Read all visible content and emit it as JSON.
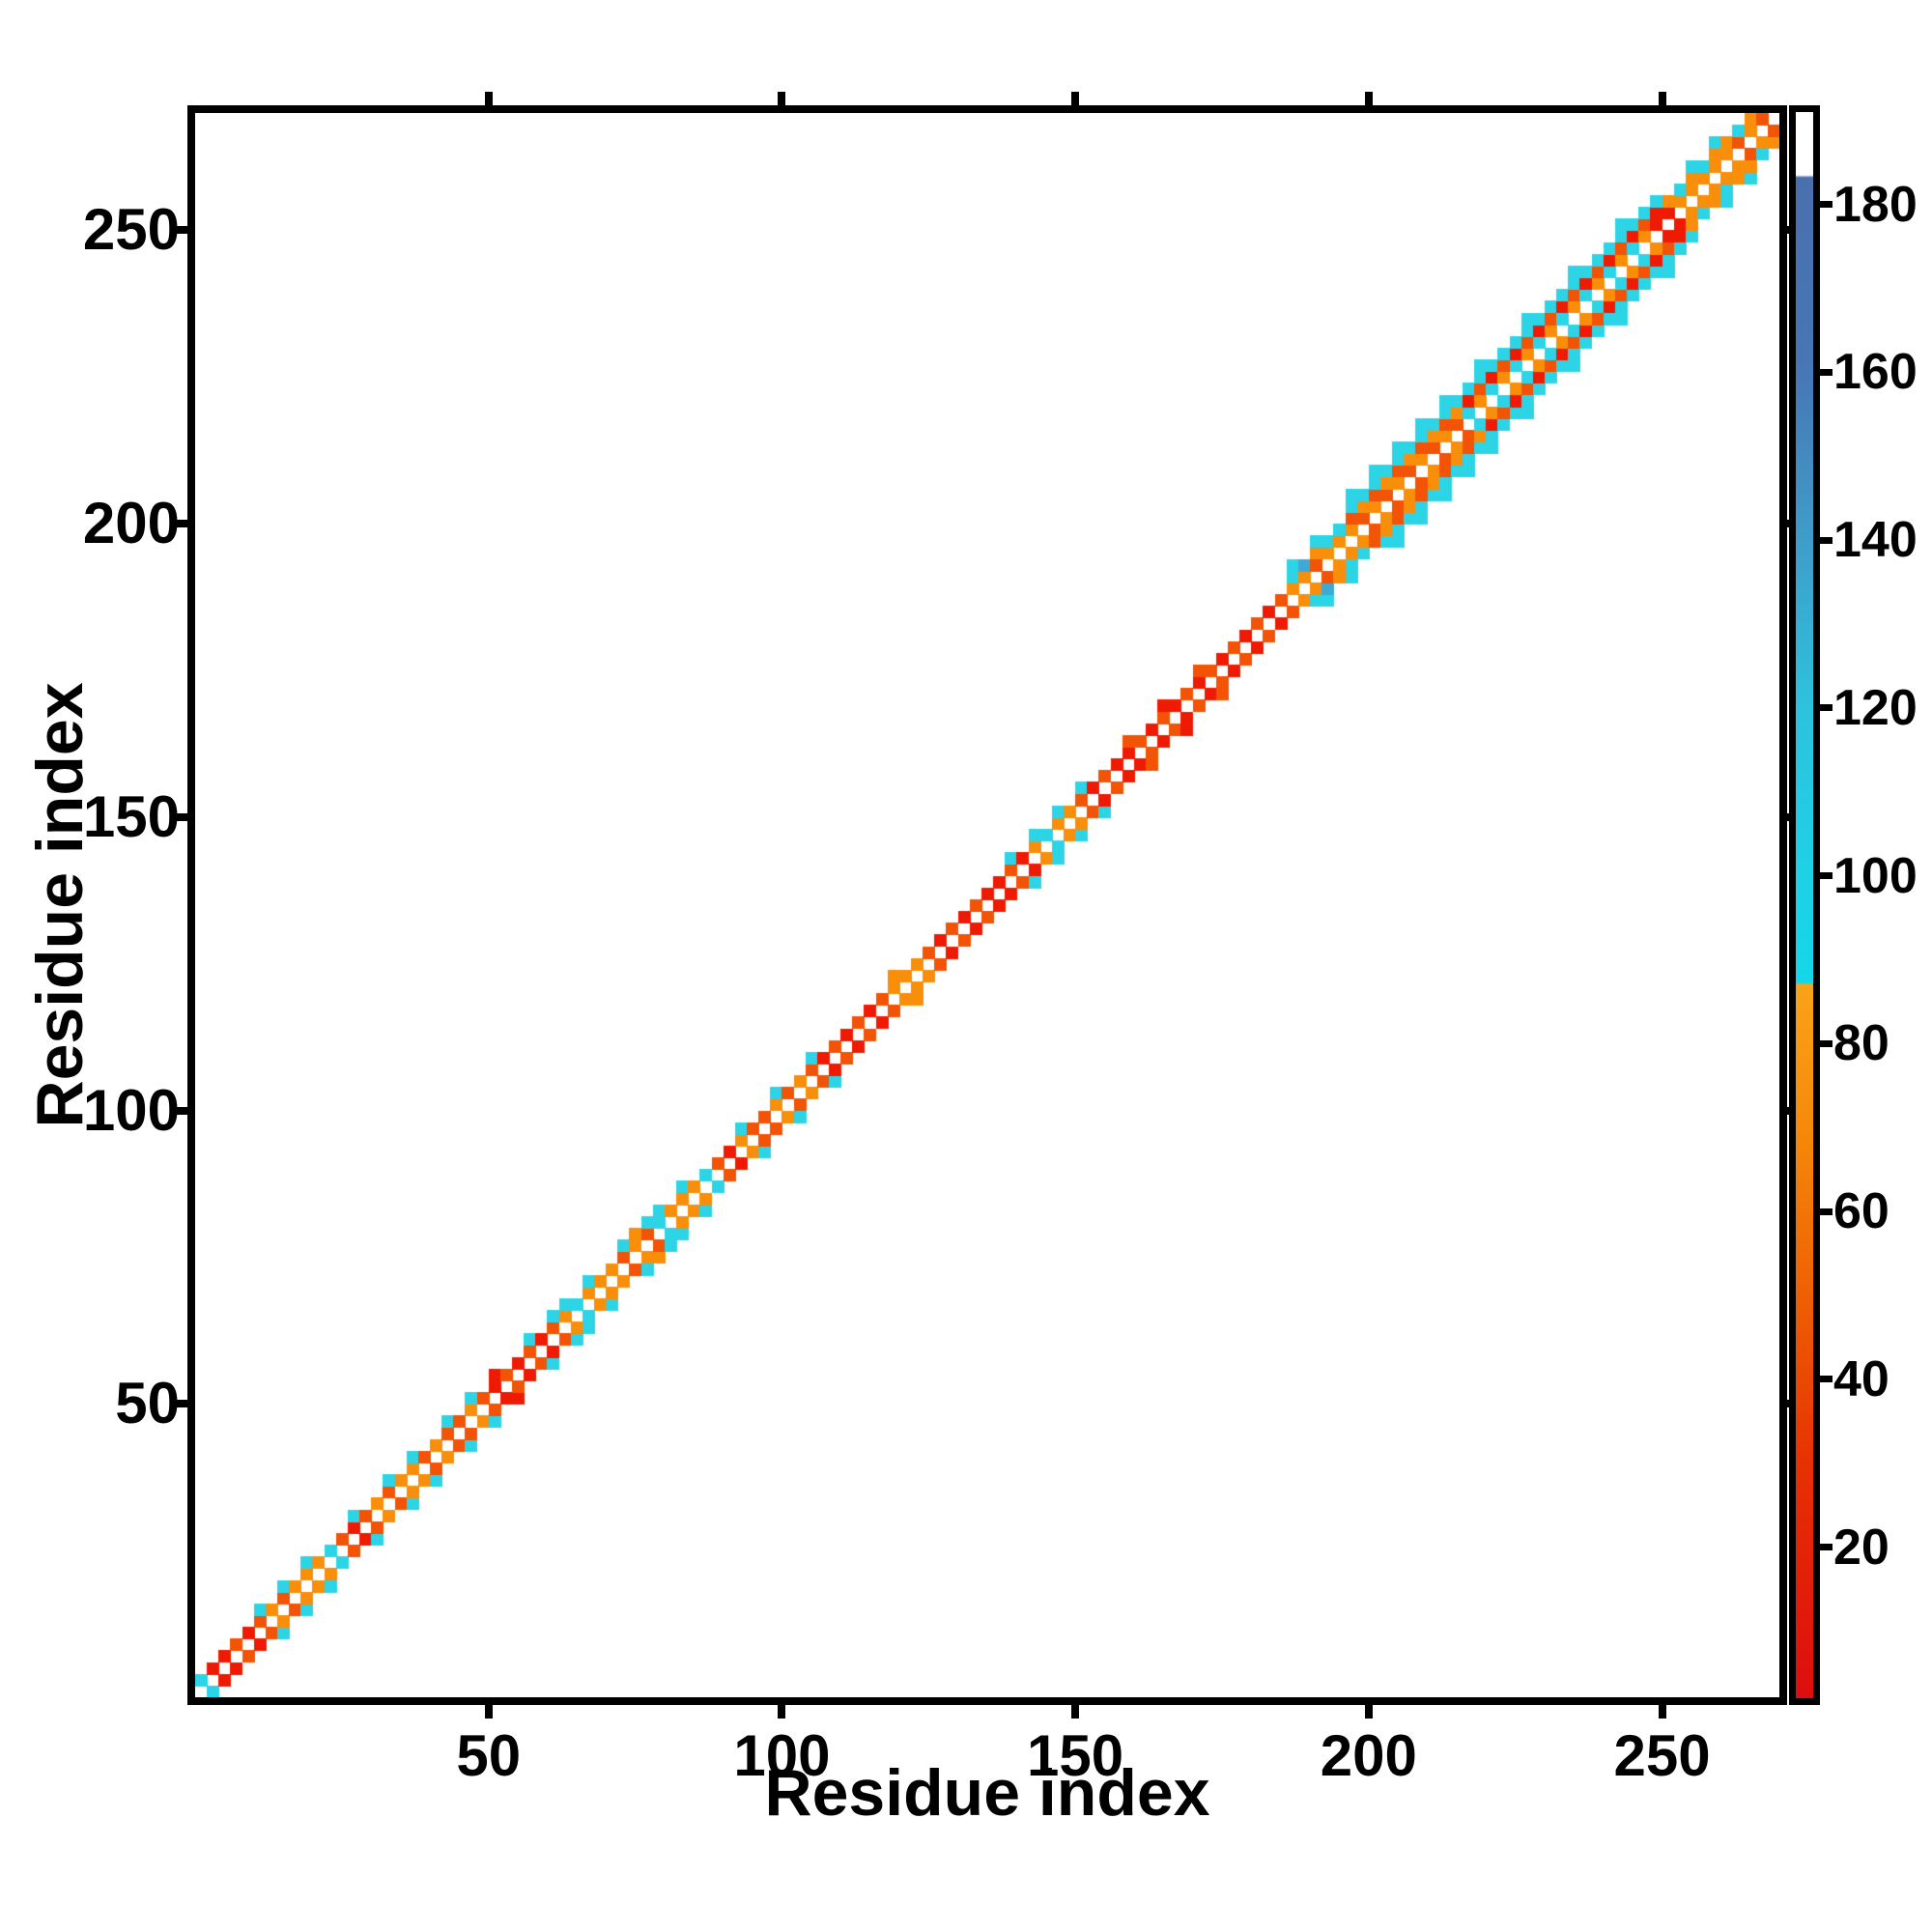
{
  "chart_data": {
    "type": "heatmap",
    "title": "",
    "xlabel": "Residue index",
    "ylabel": "Residue index",
    "x_axis": {
      "ticks": [
        50,
        100,
        150,
        200,
        250
      ],
      "range": [
        0,
        270
      ]
    },
    "y_axis": {
      "ticks": [
        50,
        100,
        150,
        200,
        250
      ],
      "range": [
        0,
        270
      ]
    },
    "n_residues": 270,
    "cell_size_residues": 2,
    "grid": false,
    "legend": "colorbar-right",
    "colorbar": {
      "ticks": [
        20,
        40,
        60,
        80,
        100,
        120,
        140,
        160,
        180
      ],
      "vmin": 2,
      "vmax": 191,
      "stops": [
        {
          "v": 191,
          "c": "#ffffff"
        },
        {
          "v": 183.5,
          "c": "#ffffff"
        },
        {
          "v": 183.2,
          "c": "#4a6fae"
        },
        {
          "v": 160,
          "c": "#4677b6"
        },
        {
          "v": 140,
          "c": "#3f9dc9"
        },
        {
          "v": 120,
          "c": "#2dc2dd"
        },
        {
          "v": 100,
          "c": "#1fd1e5"
        },
        {
          "v": 87.3,
          "c": "#14d7e9"
        },
        {
          "v": 87,
          "c": "#f9a319"
        },
        {
          "v": 70,
          "c": "#f58a0b"
        },
        {
          "v": 50,
          "c": "#ee6004"
        },
        {
          "v": 30,
          "c": "#e73103"
        },
        {
          "v": 2,
          "c": "#dc0e0e"
        }
      ]
    },
    "palette": {
      "red": "#ee1b02",
      "redOrange": "#f35304",
      "orange": "#f98e0a",
      "cyan": "#2dd4e6",
      "blueCyan": "#3fa9d6"
    },
    "diagonal_color": "#ffffff",
    "background_value_color": "#ffffff",
    "segments": [
      {
        "r0": 0,
        "r1": 4,
        "o1": [
          "cyan",
          "red"
        ]
      },
      {
        "r0": 4,
        "r1": 10,
        "o1": [
          "red",
          "redOrange"
        ]
      },
      {
        "r0": 10,
        "r1": 16,
        "o1": [
          "redOrange",
          "orange"
        ],
        "o2": [
          "cyan",
          null
        ]
      },
      {
        "r0": 16,
        "r1": 22,
        "o1": [
          "orange",
          "orange"
        ],
        "o2": [
          null,
          "cyan"
        ]
      },
      {
        "r0": 22,
        "r1": 26,
        "o1": [
          "cyan",
          "redOrange"
        ]
      },
      {
        "r0": 26,
        "r1": 30,
        "o1": [
          "red",
          "redOrange"
        ],
        "o2": [
          "cyan",
          null
        ]
      },
      {
        "r0": 30,
        "r1": 36,
        "o1": [
          "orange",
          "redOrange"
        ],
        "o2": [
          null,
          "cyan"
        ]
      },
      {
        "r0": 36,
        "r1": 44,
        "o1": [
          "orange",
          "redOrange"
        ],
        "o2": [
          "cyan",
          null,
          null
        ]
      },
      {
        "r0": 44,
        "r1": 50,
        "o1": [
          "redOrange",
          "orange"
        ],
        "o2": [
          null,
          "cyan"
        ]
      },
      {
        "r0": 50,
        "r1": 56,
        "o1": [
          "red",
          "redOrange"
        ],
        "o2": [
          "red",
          null,
          null
        ]
      },
      {
        "r0": 56,
        "r1": 62,
        "o1": [
          "redOrange",
          "red"
        ],
        "o2": [
          "cyan",
          null
        ]
      },
      {
        "r0": 62,
        "r1": 70,
        "o1": [
          "orange",
          "cyan",
          "orange",
          "orange"
        ],
        "o2": [
          "cyan",
          null,
          "cyan",
          null
        ]
      },
      {
        "r0": 70,
        "r1": 78,
        "o1": [
          "orange",
          "redOrange"
        ],
        "o2": [
          null,
          "cyan",
          "orange",
          "cyan"
        ]
      },
      {
        "r0": 78,
        "r1": 88,
        "o1": [
          "cyan",
          "orange",
          "orange",
          "orange"
        ],
        "o2": [
          "cyan",
          null,
          "cyan",
          null,
          null
        ]
      },
      {
        "r0": 88,
        "r1": 98,
        "o1": [
          "redOrange",
          "red",
          "orange",
          "redOrange"
        ],
        "o2": [
          null,
          null,
          "cyan",
          null,
          null
        ]
      },
      {
        "r0": 98,
        "r1": 106,
        "o1": [
          "orange",
          "redOrange"
        ],
        "o2": [
          "cyan",
          null,
          null,
          "cyan"
        ]
      },
      {
        "r0": 106,
        "r1": 118,
        "o1": [
          "red",
          "redOrange"
        ]
      },
      {
        "r0": 118,
        "r1": 124,
        "o1": [
          "orange",
          "orange"
        ],
        "o2": [
          "orange",
          null,
          null
        ]
      },
      {
        "r0": 124,
        "r1": 136,
        "o1": [
          "redOrange",
          "red"
        ]
      },
      {
        "r0": 136,
        "r1": 142,
        "o1": [
          "red",
          "redOrange"
        ],
        "o2": [
          null,
          "cyan",
          null
        ]
      },
      {
        "r0": 142,
        "r1": 150,
        "o1": [
          "orange",
          "cyan",
          "orange",
          "orange"
        ],
        "o2": [
          "cyan",
          null,
          "cyan",
          null
        ]
      },
      {
        "r0": 150,
        "r1": 158,
        "o1": [
          "redOrange",
          "red"
        ],
        "o2": [
          "cyan",
          null,
          null,
          null
        ]
      },
      {
        "r0": 158,
        "r1": 174,
        "o1": [
          "red",
          "redOrange"
        ],
        "o2": [
          "redOrange",
          null,
          null,
          "red",
          null,
          null
        ]
      },
      {
        "r0": 174,
        "r1": 186,
        "o1": [
          "red",
          "redOrange"
        ]
      },
      {
        "r0": 186,
        "r1": 196,
        "o1": [
          "orange",
          "orange",
          "redOrange"
        ],
        "o2": [
          "cyan",
          "blueCyan",
          "orange",
          "cyan"
        ],
        "o3": [
          "cyan",
          null,
          "cyan",
          null,
          null
        ]
      },
      {
        "r0": 196,
        "r1": 216,
        "o1": [
          "orange",
          "redOrange"
        ],
        "o2": [
          "redOrange",
          "orange"
        ],
        "o3": [
          "cyan",
          "cyan"
        ],
        "o4": [
          "cyan",
          null,
          "cyan",
          null
        ]
      },
      {
        "r0": 216,
        "r1": 248,
        "o1": [
          "cyan",
          "orange"
        ],
        "o2": [
          "red",
          "redOrange"
        ],
        "o3": [
          "cyan",
          "cyan"
        ],
        "o4": [
          null,
          "cyan",
          null,
          null
        ]
      },
      {
        "r0": 248,
        "r1": 252,
        "o1": [
          "red",
          "red"
        ],
        "o2": [
          "red",
          "orange"
        ],
        "o3": [
          "cyan",
          null
        ]
      },
      {
        "r0": 252,
        "r1": 260,
        "o1": [
          "orange",
          "orange"
        ],
        "o2": [
          "cyan",
          "orange"
        ],
        "o3": [
          null,
          "cyan"
        ]
      },
      {
        "r0": 260,
        "r1": 270,
        "o1": [
          "orange",
          "redOrange"
        ],
        "o2": [
          "orange",
          "cyan"
        ]
      }
    ]
  }
}
